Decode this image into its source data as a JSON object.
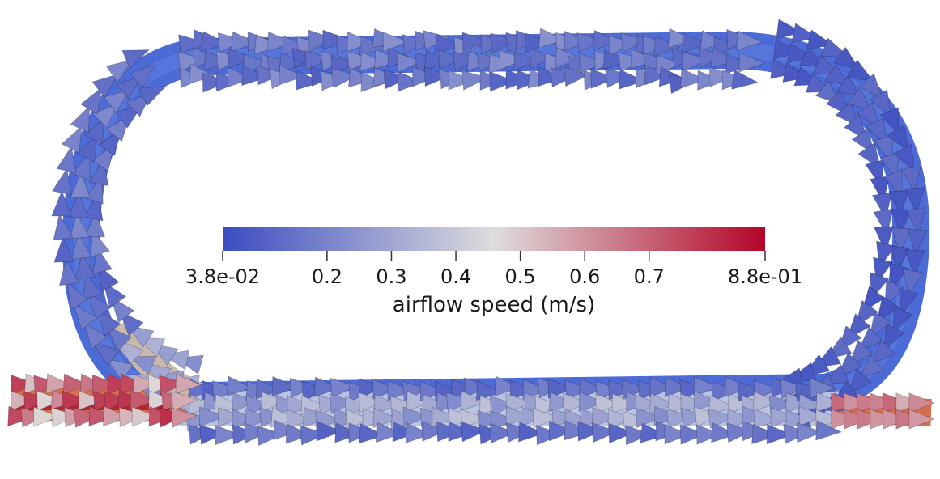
{
  "colorbar": {
    "title": "airflow speed (m/s)",
    "min_label": "3.8e-02",
    "max_label": "8.8e-01",
    "range": [
      0.038,
      0.88
    ],
    "ticks": [
      {
        "value": 0.038,
        "label": "3.8e-02"
      },
      {
        "value": 0.2,
        "label": "0.2"
      },
      {
        "value": 0.3,
        "label": "0.3"
      },
      {
        "value": 0.4,
        "label": "0.4"
      },
      {
        "value": 0.5,
        "label": "0.5"
      },
      {
        "value": 0.6,
        "label": "0.6"
      },
      {
        "value": 0.7,
        "label": "0.7"
      },
      {
        "value": 0.88,
        "label": "8.8e-01"
      }
    ],
    "colormap": "cool-to-warm",
    "color_low": "#3b4cc0",
    "color_mid": "#dddddd",
    "color_high": "#b40426"
  },
  "flow": {
    "loop_speed": 0.1,
    "inlet_speed": 0.8,
    "outlet_speed": 0.7
  }
}
